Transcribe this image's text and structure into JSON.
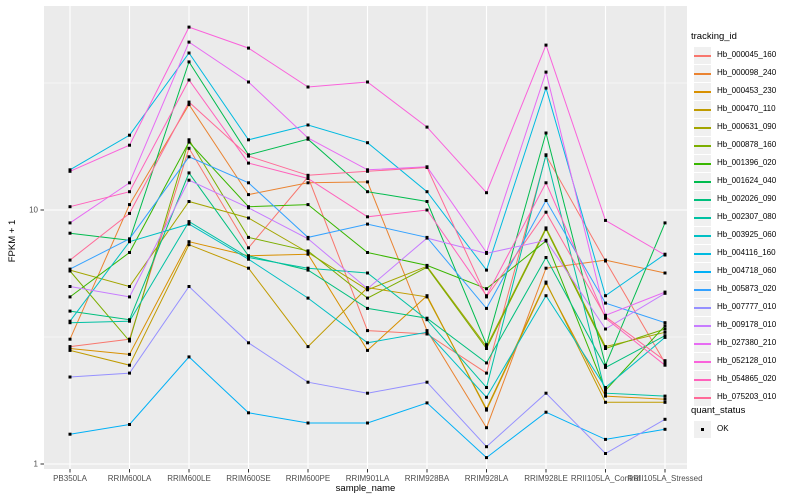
{
  "chart_data": {
    "type": "line",
    "title": "",
    "xlabel": "sample_name",
    "ylabel": "FPKM + 1",
    "y_scale": "log10",
    "ylim": [
      0.95,
      62
    ],
    "y_ticks": [
      1,
      10
    ],
    "y_tick_labels": [
      "1",
      "10"
    ],
    "y_minor_ticks": [
      3.1623,
      31.623
    ],
    "grid": "on",
    "legend_position": "right",
    "panel_bg": "#EBEBEB",
    "grid_color": "#FFFFFF",
    "tick_label_color": "#4D4D4D",
    "marker": "black-square",
    "categories": [
      "PB350LA",
      "RRIM600LA",
      "RRIM600LE",
      "RRIM600SE",
      "RRIM600PE",
      "RRIM901LA",
      "RRIM928BA",
      "RRIM928LA",
      "RRIM928LE",
      "RRII105LA_Control",
      "RRII105LA_Stressed"
    ],
    "color_legend_title": "tracking_id",
    "point_legend_title": "quant_status",
    "point_legend_items": [
      {
        "label": "OK"
      }
    ],
    "series": [
      {
        "name": "Hb_000045_160",
        "color": "#F8766D",
        "values": [
          2.9,
          3.1,
          17.5,
          7.1,
          13.5,
          3.35,
          3.25,
          2.28,
          16.4,
          6.3,
          2.5
        ]
      },
      {
        "name": "Hb_000098_240",
        "color": "#EA8331",
        "values": [
          3.1,
          10.5,
          26.0,
          11.5,
          12.8,
          12.9,
          3.35,
          1.39,
          5.9,
          6.35,
          5.65
        ]
      },
      {
        "name": "Hb_000453_230",
        "color": "#D89000",
        "values": [
          2.85,
          2.7,
          7.5,
          6.6,
          6.7,
          2.8,
          4.6,
          1.63,
          5.15,
          1.85,
          1.8
        ]
      },
      {
        "name": "Hb_000470_110",
        "color": "#C09B00",
        "values": [
          2.8,
          2.45,
          7.3,
          5.9,
          2.9,
          4.95,
          4.55,
          1.65,
          5.2,
          1.75,
          1.75
        ]
      },
      {
        "name": "Hb_000631_090",
        "color": "#A3A500",
        "values": [
          5.8,
          5.0,
          10.8,
          9.3,
          6.8,
          4.85,
          6.0,
          2.9,
          8.5,
          2.9,
          3.3
        ]
      },
      {
        "name": "Hb_000878_160",
        "color": "#7CAE00",
        "values": [
          5.75,
          3.05,
          18.9,
          7.8,
          6.9,
          4.5,
          5.95,
          2.85,
          8.4,
          2.85,
          3.4
        ]
      },
      {
        "name": "Hb_001396_020",
        "color": "#39B600",
        "values": [
          4.55,
          6.8,
          18.5,
          10.3,
          10.5,
          6.8,
          6.05,
          4.9,
          7.55,
          1.95,
          3.5
        ]
      },
      {
        "name": "Hb_001624_040",
        "color": "#00BB4E",
        "values": [
          8.1,
          7.6,
          38.3,
          16.5,
          19.0,
          11.8,
          10.8,
          2.95,
          20.1,
          2.45,
          8.9
        ]
      },
      {
        "name": "Hb_002026_090",
        "color": "#00BF7D",
        "values": [
          4.0,
          3.7,
          14.0,
          6.6,
          5.8,
          4.1,
          3.75,
          2.5,
          6.5,
          2.4,
          3.2
        ]
      },
      {
        "name": "Hb_002307_080",
        "color": "#00C1A3",
        "values": [
          3.6,
          3.65,
          9.0,
          6.5,
          5.9,
          5.65,
          3.7,
          2.0,
          16.5,
          1.9,
          1.85
        ]
      },
      {
        "name": "Hb_003925_060",
        "color": "#00BFC4",
        "values": [
          3.65,
          7.5,
          8.8,
          6.4,
          4.5,
          3.0,
          3.3,
          1.83,
          4.6,
          2.0,
          3.15
        ]
      },
      {
        "name": "Hb_004116_160",
        "color": "#00BAE0",
        "values": [
          14.4,
          19.7,
          41.5,
          18.9,
          21.6,
          18.4,
          11.8,
          5.8,
          30.2,
          4.6,
          6.7
        ]
      },
      {
        "name": "Hb_004718_060",
        "color": "#00B0F6",
        "values": [
          1.31,
          1.43,
          2.64,
          1.59,
          1.45,
          1.45,
          1.74,
          1.06,
          1.6,
          1.25,
          1.37
        ]
      },
      {
        "name": "Hb_005873_020",
        "color": "#35A2FF",
        "values": [
          5.85,
          7.7,
          16.2,
          12.8,
          7.8,
          8.8,
          7.8,
          4.1,
          10.9,
          4.3,
          3.6
        ]
      },
      {
        "name": "Hb_007777_010",
        "color": "#9590FF",
        "values": [
          2.2,
          2.28,
          5.0,
          3.0,
          2.1,
          1.9,
          2.1,
          1.17,
          1.9,
          1.1,
          1.5
        ]
      },
      {
        "name": "Hb_009178_010",
        "color": "#C77CFF",
        "values": [
          5.0,
          4.55,
          13.1,
          10.2,
          7.7,
          4.9,
          7.75,
          6.75,
          7.6,
          3.4,
          4.7
        ]
      },
      {
        "name": "Hb_027380_210",
        "color": "#E76BF3",
        "values": [
          8.9,
          12.8,
          45.8,
          31.9,
          19.2,
          14.4,
          14.8,
          6.8,
          34.9,
          3.85,
          4.75
        ]
      },
      {
        "name": "Hb_052128_010",
        "color": "#FA62DB",
        "values": [
          14.2,
          18.0,
          52.5,
          43.4,
          30.5,
          31.9,
          21.2,
          11.7,
          44.6,
          9.1,
          6.65
        ]
      },
      {
        "name": "Hb_054865_020",
        "color": "#FF62BC",
        "values": [
          10.3,
          11.8,
          32.5,
          15.3,
          13.3,
          9.4,
          10.0,
          4.6,
          12.8,
          3.75,
          2.45
        ]
      },
      {
        "name": "Hb_075203_010",
        "color": "#FF6A98",
        "values": [
          6.35,
          9.7,
          26.6,
          16.3,
          13.7,
          14.2,
          14.7,
          4.55,
          9.8,
          3.8,
          2.55
        ]
      }
    ]
  }
}
